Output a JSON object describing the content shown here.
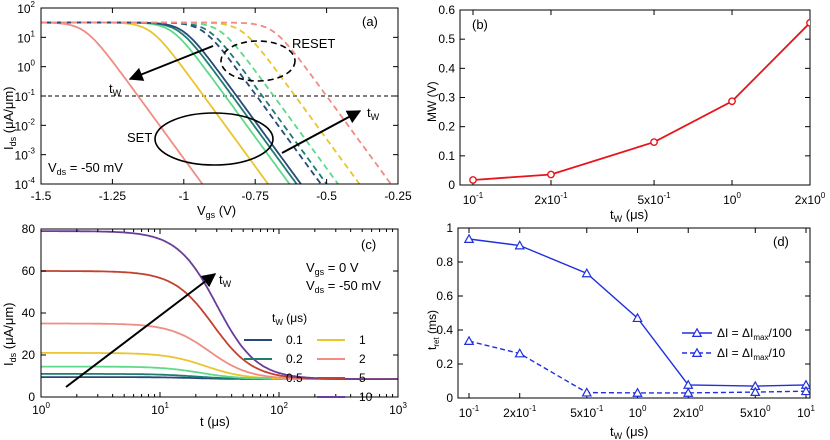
{
  "chart_data": [
    {
      "panel": "(a)",
      "type": "line",
      "xlabel": "V",
      "xlabel_sub": "gs",
      "xlabel_unit": " (V)",
      "ylabel": "I",
      "ylabel_sub": "ds",
      "ylabel_unit": " (μA/μm)",
      "xscale": "linear",
      "yscale": "log",
      "xlim": [
        -1.5,
        -0.25
      ],
      "ylim": [
        0.0001,
        100
      ],
      "xticks": [
        {
          "v": -1.5,
          "label": "-1.5"
        },
        {
          "v": -1.25,
          "label": "-1.25"
        },
        {
          "v": -1.0,
          "label": "-1"
        },
        {
          "v": -0.75,
          "label": "-0.75"
        },
        {
          "v": -0.5,
          "label": "-0.5"
        },
        {
          "v": -0.25,
          "label": "-0.25"
        }
      ],
      "yticks": [
        {
          "v": 100,
          "m": "10",
          "e": "2"
        },
        {
          "v": 10,
          "m": "10",
          "e": "1"
        },
        {
          "v": 1,
          "m": "10",
          "e": "0"
        },
        {
          "v": 0.1,
          "m": "10",
          "e": "-1"
        },
        {
          "v": 0.01,
          "m": "10",
          "e": "-2"
        },
        {
          "v": 0.001,
          "m": "10",
          "e": "-3"
        },
        {
          "v": 0.0001,
          "m": "10",
          "e": "-4"
        }
      ],
      "reference_line": 0.1,
      "note": {
        "pre": "V",
        "sub": "ds",
        "post": " = -50 mV"
      },
      "annotations": [
        "RESET",
        "SET",
        "t",
        "W",
        "t",
        "W"
      ],
      "set_curves": [
        {
          "color": "#F08C84",
          "vth": -1.16
        },
        {
          "color": "#E9C52E",
          "vth": -0.93
        },
        {
          "color": "#5FD98A",
          "vth": -0.855
        },
        {
          "color": "#1F7D6F",
          "vth": -0.83
        },
        {
          "color": "#274A78",
          "vth": -0.815
        }
      ],
      "reset_curves": [
        {
          "color": "#274A78",
          "vth": -0.745
        },
        {
          "color": "#1F7D6F",
          "vth": -0.725
        },
        {
          "color": "#5FD98A",
          "vth": -0.685
        },
        {
          "color": "#E9C52E",
          "vth": -0.61
        },
        {
          "color": "#F08C84",
          "vth": -0.5
        }
      ]
    },
    {
      "panel": "(b)",
      "type": "line",
      "xscale": "log",
      "ylabel": "MW (V)",
      "xlabel": "t",
      "xlabel_sub": "W",
      "xlabel_unit": " (μs)",
      "ylim": [
        0,
        0.6
      ],
      "xlim": [
        0.1,
        2
      ],
      "x": [
        0.1,
        0.2,
        0.5,
        1,
        2
      ],
      "y": [
        0.017,
        0.036,
        0.147,
        0.287,
        0.556
      ],
      "color": "#E8141C",
      "yticks": [
        "0",
        "0.1",
        "0.2",
        "0.3",
        "0.4",
        "0.5",
        "0.6"
      ],
      "xticks": [
        {
          "v": 0.1,
          "m": "10",
          "e": "-1"
        },
        {
          "v": 0.2,
          "m": "2x10",
          "e": "-1"
        },
        {
          "v": 0.5,
          "m": "5x10",
          "e": "-1"
        },
        {
          "v": 1,
          "m": "10",
          "e": "0"
        },
        {
          "v": 2,
          "m": "2x10",
          "e": "0"
        }
      ]
    },
    {
      "panel": "(c)",
      "type": "line",
      "xscale": "log",
      "xlabel": "t (μs)",
      "ylabel": "I",
      "ylabel_sub": "ds",
      "ylabel_unit": " (μA/μm)",
      "xlim": [
        1,
        1000
      ],
      "ylim": [
        0,
        80
      ],
      "yticks": [
        "0",
        "20",
        "40",
        "60",
        "80"
      ],
      "xticks": [
        {
          "v": 1,
          "m": "10",
          "e": "0"
        },
        {
          "v": 10,
          "m": "10",
          "e": "1"
        },
        {
          "v": 100,
          "m": "10",
          "e": "2"
        },
        {
          "v": 1000,
          "m": "10",
          "e": "3"
        }
      ],
      "conditions": [
        {
          "pre": "V",
          "sub": "gs",
          "post": " = 0 V"
        },
        {
          "pre": "V",
          "sub": "ds",
          "post": " = -50 mV"
        }
      ],
      "legend_title": {
        "pre": "t",
        "sub": "W",
        "post": " (μs)"
      },
      "legend_position": "bottom-right",
      "arrow_label": {
        "pre": "t",
        "sub": "W"
      },
      "baseline": 8.5,
      "series": [
        {
          "name": "0.1",
          "color": "#274A78",
          "start": 9.5,
          "tau": 20
        },
        {
          "name": "0.2",
          "color": "#1F7D6F",
          "start": 11.0,
          "tau": 20
        },
        {
          "name": "0.5",
          "color": "#5FD98A",
          "start": 14.5,
          "tau": 22
        },
        {
          "name": "1",
          "color": "#E9C52E",
          "start": 21.0,
          "tau": 24
        },
        {
          "name": "2",
          "color": "#F08C84",
          "start": 35.0,
          "tau": 26
        },
        {
          "name": "5",
          "color": "#C2412F",
          "start": 60.0,
          "tau": 28
        },
        {
          "name": "10",
          "color": "#6A3D9A",
          "start": 79.0,
          "tau": 30
        }
      ]
    },
    {
      "panel": "(d)",
      "type": "line",
      "xscale": "log",
      "xlabel": "t",
      "xlabel_sub": "W",
      "xlabel_unit": " (μs)",
      "ylabel": "t",
      "ylabel_sub": "ret",
      "ylabel_unit": " (ms)",
      "ylim": [
        0,
        1
      ],
      "xlim": [
        0.1,
        10
      ],
      "yticks": [
        "0",
        "0.2",
        "0.4",
        "0.6",
        "0.8",
        "1"
      ],
      "xticks": [
        {
          "v": 0.1,
          "m": "10",
          "e": "-1"
        },
        {
          "v": 0.2,
          "m": "2x10",
          "e": "-1"
        },
        {
          "v": 0.5,
          "m": "5x10",
          "e": "-1"
        },
        {
          "v": 1,
          "m": "10",
          "e": "0"
        },
        {
          "v": 2,
          "m": "2x10",
          "e": "0"
        },
        {
          "v": 5,
          "m": "5x10",
          "e": "0"
        },
        {
          "v": 10,
          "m": "10",
          "e": "1"
        }
      ],
      "color": "#1F2FE0",
      "series": [
        {
          "name": "ΔI = ΔI",
          "name_sub": "max",
          "name_post": "/100",
          "dashed": false,
          "x": [
            0.1,
            0.2,
            0.5,
            1,
            2,
            5,
            10
          ],
          "y": [
            0.935,
            0.897,
            0.733,
            0.47,
            0.077,
            0.07,
            0.077
          ]
        },
        {
          "name": "ΔI = ΔI",
          "name_sub": "max",
          "name_post": "/10",
          "dashed": true,
          "x": [
            0.1,
            0.2,
            0.5,
            1,
            2,
            5,
            10
          ],
          "y": [
            0.335,
            0.262,
            0.032,
            0.03,
            0.03,
            0.035,
            0.04
          ]
        }
      ]
    }
  ]
}
